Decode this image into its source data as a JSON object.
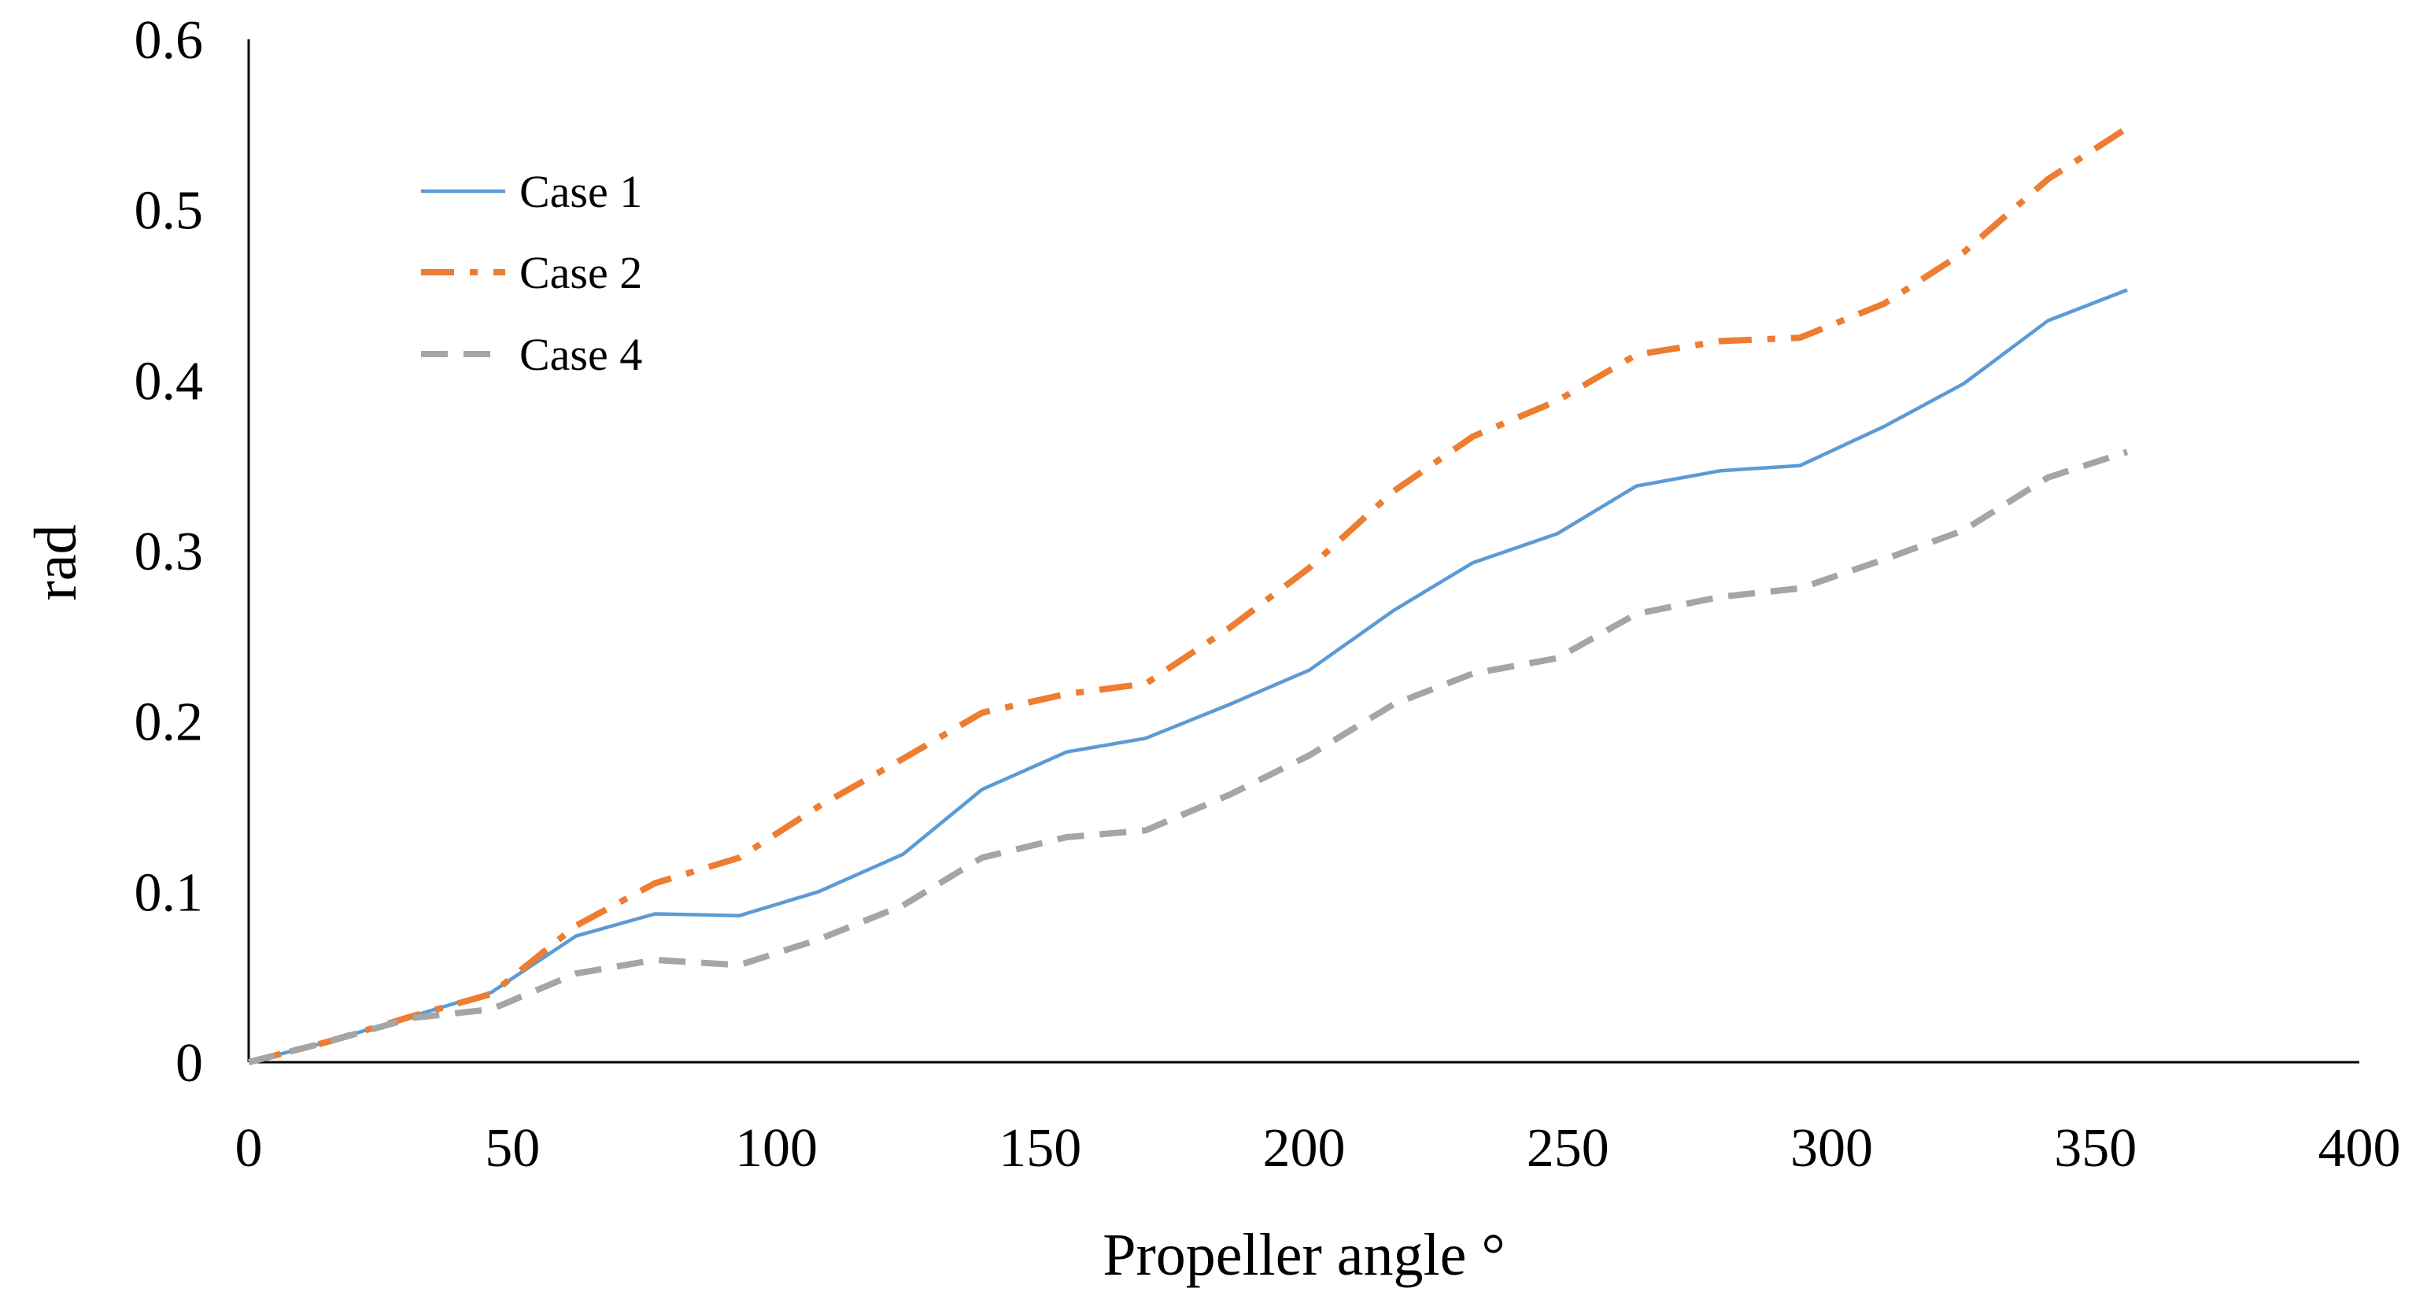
{
  "chart_data": {
    "type": "line",
    "title": "",
    "xlabel": "Propeller angle °",
    "ylabel": "rad",
    "xlim": [
      0,
      400
    ],
    "ylim": [
      0,
      0.6
    ],
    "x_ticks": [
      "0",
      "50",
      "100",
      "150",
      "200",
      "250",
      "300",
      "350",
      "400"
    ],
    "y_ticks": [
      "0",
      "0.1",
      "0.2",
      "0.3",
      "0.4",
      "0.5",
      "0.6"
    ],
    "grid": false,
    "legend_position": "top-left",
    "x": [
      0,
      15,
      31,
      46,
      62,
      77,
      93,
      108,
      124,
      139,
      155,
      170,
      186,
      201,
      217,
      232,
      248,
      263,
      279,
      294,
      310,
      325,
      341,
      356
    ],
    "series": [
      {
        "name": "Case 1",
        "color": "#5b9bd5",
        "style": "solid",
        "values": [
          0,
          0.012,
          0.027,
          0.041,
          0.074,
          0.087,
          0.086,
          0.1,
          0.122,
          0.16,
          0.182,
          0.19,
          0.21,
          0.23,
          0.265,
          0.293,
          0.31,
          0.338,
          0.347,
          0.35,
          0.373,
          0.398,
          0.435,
          0.453
        ]
      },
      {
        "name": "Case 2",
        "color": "#ed7d31",
        "style": "dash-dot",
        "values": [
          0,
          0.012,
          0.027,
          0.04,
          0.08,
          0.105,
          0.12,
          0.15,
          0.178,
          0.205,
          0.216,
          0.222,
          0.255,
          0.29,
          0.335,
          0.367,
          0.388,
          0.415,
          0.423,
          0.425,
          0.445,
          0.475,
          0.518,
          0.548
        ]
      },
      {
        "name": "Case 4",
        "color": "#a5a5a5",
        "style": "dashed",
        "values": [
          0,
          0.012,
          0.026,
          0.031,
          0.052,
          0.06,
          0.057,
          0.072,
          0.092,
          0.12,
          0.132,
          0.136,
          0.157,
          0.18,
          0.21,
          0.228,
          0.237,
          0.263,
          0.273,
          0.278,
          0.295,
          0.312,
          0.343,
          0.358
        ]
      }
    ]
  }
}
